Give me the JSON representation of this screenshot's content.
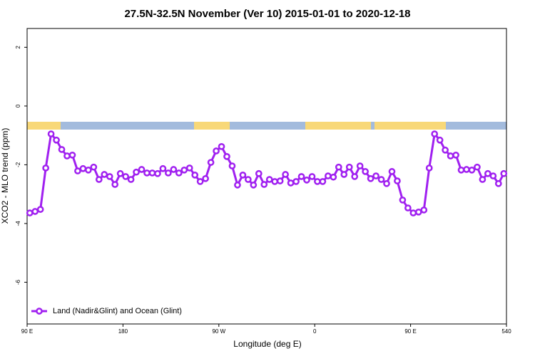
{
  "chart_data": {
    "type": "line",
    "title": "27.5N-32.5N November (Ver 10)   2015-01-01 to 2020-12-18",
    "xlabel": "Longitude (deg E)",
    "ylabel": "XCO2 - MLO trend (ppm)",
    "x": [
      92.5,
      97.5,
      102.5,
      107.5,
      112.5,
      117.5,
      122.5,
      127.5,
      132.5,
      137.5,
      142.5,
      147.5,
      152.5,
      157.5,
      162.5,
      167.5,
      172.5,
      177.5,
      182.5,
      187.5,
      192.5,
      197.5,
      202.5,
      207.5,
      212.5,
      217.5,
      222.5,
      227.5,
      232.5,
      237.5,
      242.5,
      247.5,
      252.5,
      257.5,
      262.5,
      267.5,
      272.5,
      277.5,
      282.5,
      287.5,
      292.5,
      297.5,
      302.5,
      307.5,
      312.5,
      317.5,
      322.5,
      327.5,
      332.5,
      337.5,
      342.5,
      347.5,
      352.5,
      357.5,
      362.5,
      367.5,
      372.5,
      377.5,
      382.5,
      387.5,
      392.5,
      397.5,
      402.5,
      407.5,
      412.5,
      417.5,
      422.5,
      427.5,
      432.5,
      437.5,
      442.5,
      447.5,
      452.5,
      457.5,
      462.5,
      467.5,
      472.5,
      477.5,
      482.5,
      487.5,
      492.5,
      497.5,
      502.5,
      507.5,
      512.5,
      517.5,
      522.5,
      527.5,
      532.5,
      537.5
    ],
    "series": [
      {
        "name": "Land (Nadir&Glint) and Ocean (Glint)",
        "color": "#a020f0",
        "values": [
          -3.64,
          -3.59,
          -3.52,
          -2.11,
          -0.95,
          -1.16,
          -1.48,
          -1.7,
          -1.67,
          -2.21,
          -2.13,
          -2.18,
          -2.08,
          -2.5,
          -2.33,
          -2.4,
          -2.67,
          -2.3,
          -2.4,
          -2.5,
          -2.25,
          -2.16,
          -2.28,
          -2.28,
          -2.3,
          -2.13,
          -2.28,
          -2.16,
          -2.28,
          -2.18,
          -2.11,
          -2.35,
          -2.57,
          -2.47,
          -1.92,
          -1.53,
          -1.38,
          -1.72,
          -2.04,
          -2.69,
          -2.35,
          -2.5,
          -2.69,
          -2.3,
          -2.67,
          -2.5,
          -2.57,
          -2.55,
          -2.33,
          -2.62,
          -2.57,
          -2.4,
          -2.52,
          -2.4,
          -2.57,
          -2.57,
          -2.38,
          -2.42,
          -2.08,
          -2.33,
          -2.08,
          -2.4,
          -2.04,
          -2.23,
          -2.47,
          -2.38,
          -2.5,
          -2.64,
          -2.23,
          -2.55,
          -3.2,
          -3.47,
          -3.64,
          -3.61,
          -3.54,
          -2.11,
          -0.95,
          -1.16,
          -1.5,
          -1.7,
          -1.67,
          -2.18,
          -2.16,
          -2.18,
          -2.08,
          -2.5,
          -2.3,
          -2.38,
          -2.64,
          -2.3
        ]
      }
    ],
    "xlim": [
      90,
      540
    ],
    "xticks": [
      {
        "value": 90,
        "label": "90 E"
      },
      180,
      {
        "value": 270,
        "label": "90 W"
      },
      {
        "value": 360,
        "label": "0"
      },
      {
        "value": 450,
        "label": "90 E"
      },
      540
    ],
    "ylim": [
      -7.42,
      2.64
    ],
    "yticks": [
      2,
      0,
      -2,
      -4,
      -6
    ],
    "legend": "bottom-left"
  }
}
